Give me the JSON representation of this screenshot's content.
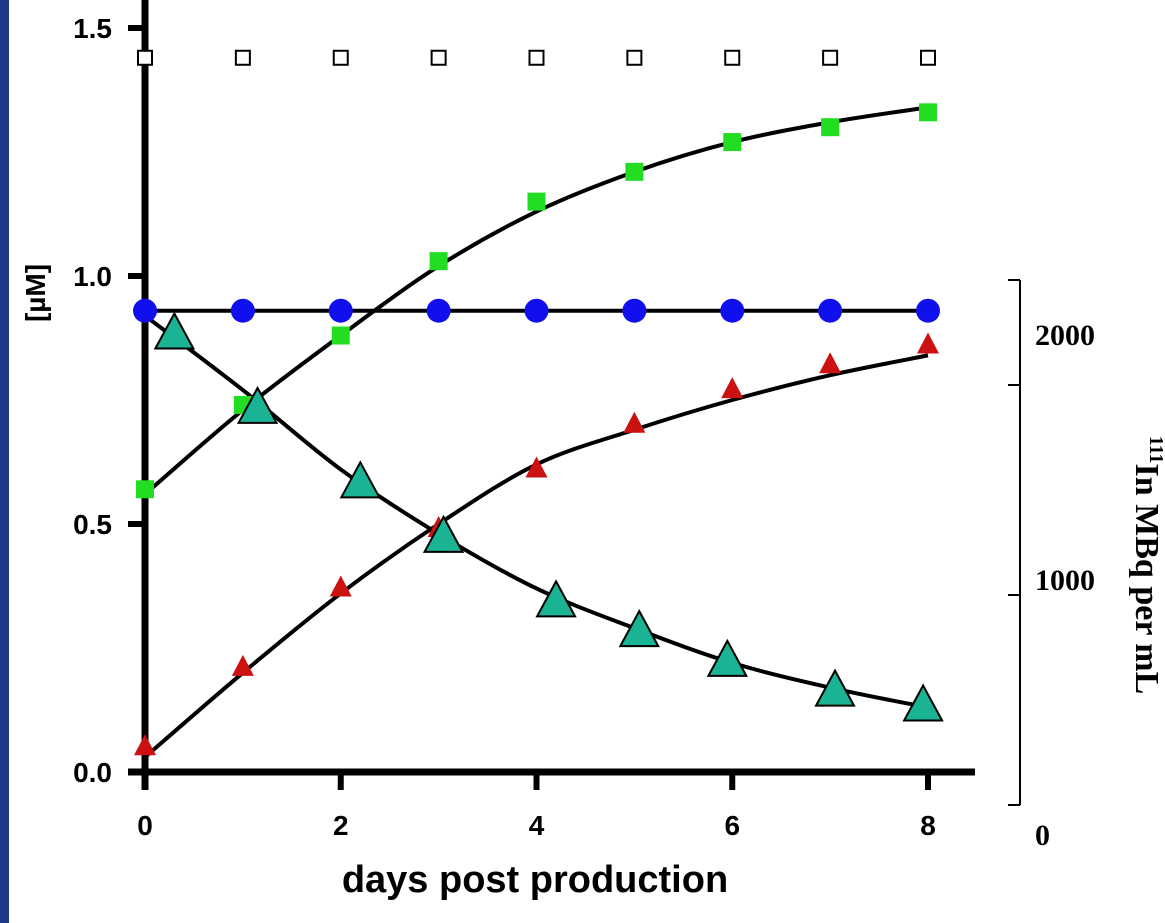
{
  "chart_data": {
    "type": "scatter",
    "xlabel": "days post production",
    "ylabel": "[µM]",
    "y2label": "111In MBq per mL",
    "y2label_sup": "111",
    "y2label_main": "In MBq per mL",
    "xlim": [
      0,
      8
    ],
    "ylim": [
      0,
      1.5
    ],
    "y2lim": [
      0,
      2500
    ],
    "x_ticks": [
      "0",
      "2",
      "4",
      "6",
      "8"
    ],
    "y_ticks": [
      "0.0",
      "0.5",
      "1.0",
      "1.5"
    ],
    "y2_ticks": [
      "0",
      "1000",
      "2000"
    ],
    "grid": false,
    "series": [
      {
        "marker": "open-square",
        "color": "#000000",
        "fit_line": false,
        "x": [
          0,
          1,
          2,
          3,
          4,
          5,
          6,
          7,
          8
        ],
        "y": [
          1.44,
          1.44,
          1.44,
          1.44,
          1.44,
          1.44,
          1.44,
          1.44,
          1.44
        ]
      },
      {
        "marker": "square",
        "color": "#22dd22",
        "fit_line": true,
        "x": [
          0,
          1,
          2,
          3,
          4,
          5,
          6,
          7,
          8
        ],
        "y": [
          0.57,
          0.74,
          0.88,
          1.03,
          1.15,
          1.21,
          1.27,
          1.3,
          1.33
        ]
      },
      {
        "marker": "circle",
        "color": "#1010ee",
        "fit_line": true,
        "x": [
          0,
          1,
          2,
          3,
          4,
          5,
          6,
          7,
          8
        ],
        "y": [
          0.93,
          0.93,
          0.93,
          0.93,
          0.93,
          0.93,
          0.93,
          0.93,
          0.93
        ]
      },
      {
        "marker": "triangle",
        "color": "#cc1111",
        "fit_line": true,
        "x": [
          0,
          1,
          2,
          3,
          4,
          5,
          6,
          7,
          8
        ],
        "y": [
          0.05,
          0.21,
          0.37,
          0.49,
          0.61,
          0.7,
          0.77,
          0.82,
          0.86
        ]
      },
      {
        "marker": "big-triangle",
        "color": "#1ab394",
        "fit_line": true,
        "x": [
          0.3,
          1.15,
          2.2,
          3.05,
          4.2,
          5.05,
          5.95,
          7.05,
          7.95
        ],
        "y": [
          0.88,
          0.73,
          0.58,
          0.47,
          0.34,
          0.28,
          0.22,
          0.16,
          0.13
        ]
      }
    ],
    "fit_curves": [
      {
        "x": [
          0,
          1,
          2,
          3,
          4,
          5,
          6,
          7,
          8
        ],
        "y": [
          0.56,
          0.73,
          0.88,
          1.02,
          1.13,
          1.21,
          1.27,
          1.31,
          1.34
        ]
      },
      {
        "x": [
          0,
          8
        ],
        "y": [
          0.93,
          0.93
        ]
      },
      {
        "x": [
          0,
          1,
          2,
          3,
          4,
          5,
          6,
          7,
          8
        ],
        "y": [
          0.03,
          0.2,
          0.36,
          0.5,
          0.62,
          0.69,
          0.75,
          0.8,
          0.84
        ]
      },
      {
        "x": [
          0,
          1,
          2,
          3,
          4,
          5,
          6,
          7,
          8
        ],
        "y": [
          0.92,
          0.77,
          0.61,
          0.48,
          0.37,
          0.29,
          0.22,
          0.17,
          0.13
        ]
      }
    ]
  }
}
